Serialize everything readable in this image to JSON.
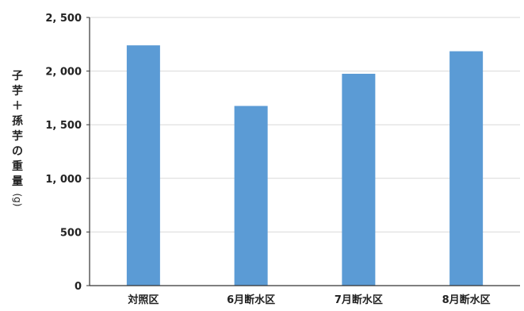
{
  "chart_data": {
    "type": "bar",
    "categories": [
      "対照区",
      "6月断水区",
      "7月断水区",
      "8月断水区"
    ],
    "values": [
      2240,
      1675,
      1975,
      2185
    ],
    "title": "",
    "xlabel": "",
    "ylabel": "子芋＋孫芋の重量",
    "yunit": "(g)",
    "ylim": [
      0,
      2500
    ],
    "yticks": [
      0,
      500,
      1000,
      1500,
      2000,
      2500
    ],
    "ytick_labels": [
      "0",
      "500",
      "1, 000",
      "1, 500",
      "2, 000",
      "2, 500"
    ],
    "grid": true,
    "legend": "none",
    "bar_color": "#5b9bd5",
    "grid_color": "#d9d9d9"
  }
}
